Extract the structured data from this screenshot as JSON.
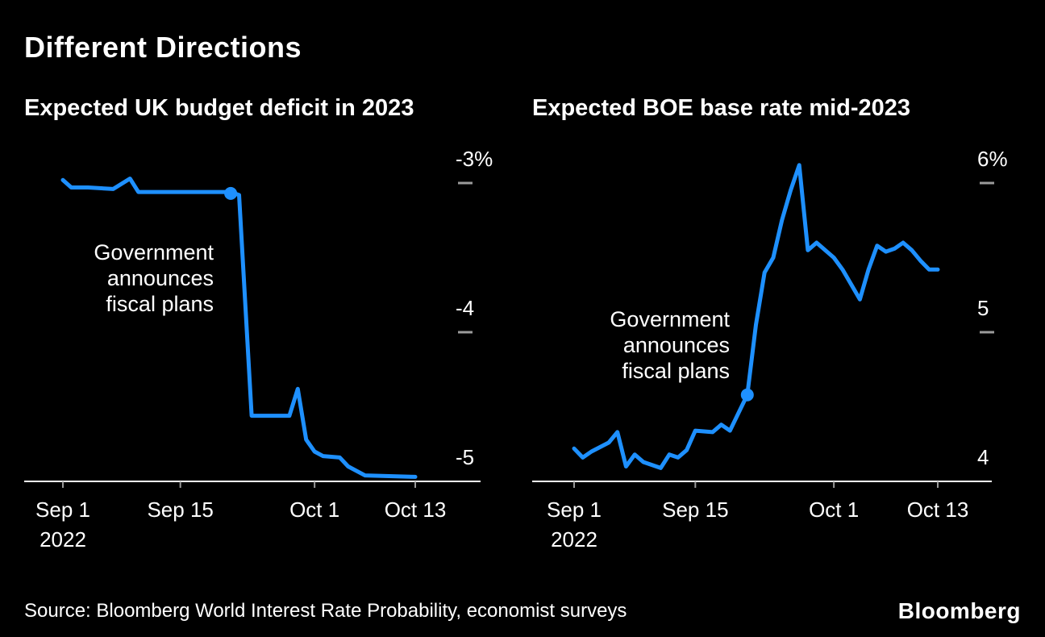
{
  "page": {
    "title": "Different Directions",
    "source": "Source: Bloomberg World Interest Rate Probability, economist surveys",
    "logo_text": "Bloomberg"
  },
  "colors": {
    "background": "#000000",
    "text": "#ffffff",
    "line": "#1e90ff",
    "axis": "#ffffff",
    "tick": "#9b9b9b"
  },
  "chart_data": [
    {
      "type": "line",
      "title": "Expected UK budget deficit in 2023",
      "x_unit": "days since Sep 1, 2022",
      "x_axis": {
        "domain": [
          0,
          42
        ],
        "ticks": [
          {
            "day": 0,
            "label": "Sep 1",
            "sub": "2022"
          },
          {
            "day": 14,
            "label": "Sep 15"
          },
          {
            "day": 30,
            "label": "Oct 1"
          },
          {
            "day": 42,
            "label": "Oct 13"
          }
        ]
      },
      "y_axis": {
        "unit": "% of GDP",
        "ticks": [
          {
            "value": -3,
            "label": "-3%"
          },
          {
            "value": -4,
            "label": "-4"
          },
          {
            "value": -5,
            "label": "-5"
          }
        ]
      },
      "series": [
        {
          "name": "Expected UK budget deficit in 2023",
          "points": [
            [
              0,
              -2.98
            ],
            [
              1,
              -3.03
            ],
            [
              3,
              -3.03
            ],
            [
              6,
              -3.04
            ],
            [
              8,
              -2.97
            ],
            [
              9,
              -3.06
            ],
            [
              20,
              -3.06
            ],
            [
              21,
              -3.08
            ],
            [
              22.5,
              -4.56
            ],
            [
              27,
              -4.56
            ],
            [
              28,
              -4.38
            ],
            [
              29,
              -4.72
            ],
            [
              30,
              -4.8
            ],
            [
              31,
              -4.83
            ],
            [
              33,
              -4.84
            ],
            [
              34,
              -4.9
            ],
            [
              36,
              -4.96
            ],
            [
              42,
              -4.97
            ]
          ]
        }
      ],
      "marker": {
        "day": 20,
        "value": -3.07
      },
      "annotation": {
        "lines": [
          "Government",
          "announces",
          "fiscal plans"
        ]
      }
    },
    {
      "type": "line",
      "title": "Expected BOE base rate mid-2023",
      "x_unit": "days since Sep 1, 2022",
      "x_axis": {
        "domain": [
          0,
          42
        ],
        "ticks": [
          {
            "day": 0,
            "label": "Sep 1",
            "sub": "2022"
          },
          {
            "day": 14,
            "label": "Sep 15"
          },
          {
            "day": 30,
            "label": "Oct 1"
          },
          {
            "day": 42,
            "label": "Oct 13"
          }
        ]
      },
      "y_axis": {
        "unit": "%",
        "ticks": [
          {
            "value": 6,
            "label": "6%"
          },
          {
            "value": 5,
            "label": "5"
          },
          {
            "value": 4,
            "label": "4"
          }
        ]
      },
      "series": [
        {
          "name": "Expected BOE base rate mid-2023",
          "points": [
            [
              0,
              4.22
            ],
            [
              1,
              4.16
            ],
            [
              2,
              4.2
            ],
            [
              4,
              4.26
            ],
            [
              5,
              4.33
            ],
            [
              6,
              4.1
            ],
            [
              7,
              4.18
            ],
            [
              8,
              4.13
            ],
            [
              10,
              4.09
            ],
            [
              11,
              4.18
            ],
            [
              12,
              4.16
            ],
            [
              13,
              4.21
            ],
            [
              14,
              4.34
            ],
            [
              16,
              4.33
            ],
            [
              17,
              4.38
            ],
            [
              18,
              4.34
            ],
            [
              19,
              4.46
            ],
            [
              20,
              4.58
            ],
            [
              21,
              5.05
            ],
            [
              22,
              5.4
            ],
            [
              23,
              5.5
            ],
            [
              24,
              5.75
            ],
            [
              25,
              5.95
            ],
            [
              26,
              6.12
            ],
            [
              27,
              5.55
            ],
            [
              28,
              5.6
            ],
            [
              29,
              5.55
            ],
            [
              30,
              5.5
            ],
            [
              31,
              5.42
            ],
            [
              33,
              5.22
            ],
            [
              34,
              5.42
            ],
            [
              35,
              5.58
            ],
            [
              36,
              5.54
            ],
            [
              37,
              5.56
            ],
            [
              38,
              5.6
            ],
            [
              39,
              5.55
            ],
            [
              40,
              5.48
            ],
            [
              41,
              5.42
            ],
            [
              42,
              5.42
            ]
          ]
        }
      ],
      "marker": {
        "day": 20,
        "value": 4.58
      },
      "annotation": {
        "lines": [
          "Government",
          "announces",
          "fiscal plans"
        ]
      }
    }
  ]
}
